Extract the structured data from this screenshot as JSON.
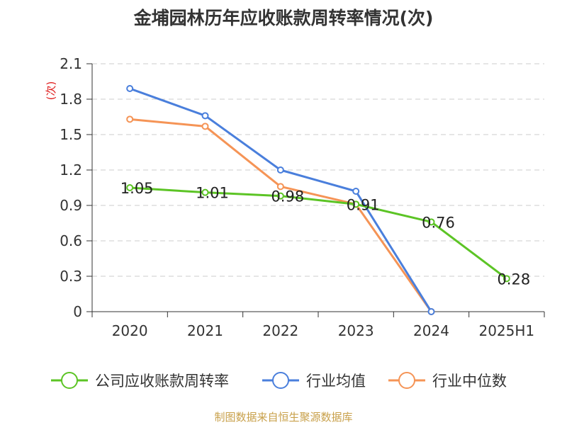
{
  "chart_data": {
    "type": "line",
    "title": "金埔园林历年应收账款周转率情况(次)",
    "ylabel": "(次)",
    "categories": [
      "2020",
      "2021",
      "2022",
      "2023",
      "2024",
      "2025H1"
    ],
    "y_ticks": [
      "0",
      "0.3",
      "0.6",
      "0.9",
      "1.2",
      "1.5",
      "1.8",
      "2.1"
    ],
    "ylim": [
      0,
      2.1
    ],
    "grid": true,
    "legend_position": "bottom",
    "series": [
      {
        "name": "公司应收账款周转率",
        "color": "#5cc425",
        "values": [
          1.05,
          1.01,
          0.98,
          0.91,
          0.76,
          0.28
        ],
        "labels": [
          "1.05",
          "1.01",
          "0.98",
          "0.91",
          "0.76",
          "0.28"
        ]
      },
      {
        "name": "行业均值",
        "color": "#4a7fdc",
        "values": [
          1.89,
          1.66,
          1.2,
          1.02,
          0,
          null
        ]
      },
      {
        "name": "行业中位数",
        "color": "#f59456",
        "values": [
          1.63,
          1.57,
          1.06,
          0.91,
          0,
          null
        ]
      }
    ]
  },
  "source": "制图数据来自恒生聚源数据库"
}
